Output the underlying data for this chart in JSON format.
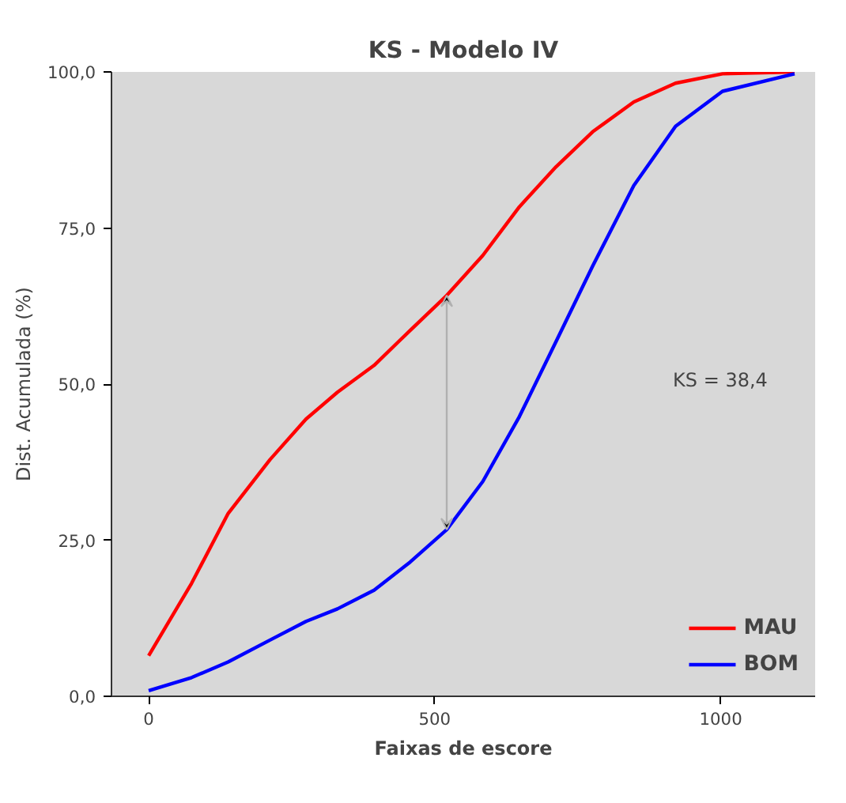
{
  "chart_data": {
    "type": "line",
    "title": "KS - Modelo IV",
    "xlabel": "Faixas de escore",
    "ylabel": "Dist. Acumulada (%)",
    "x": [
      0,
      75,
      139,
      212,
      275,
      330,
      394,
      457,
      521,
      584,
      648,
      712,
      776,
      848,
      921,
      1003,
      1129
    ],
    "series": [
      {
        "name": "MAU",
        "color": "#ff0000",
        "values": [
          6.5,
          18.1,
          29.3,
          37.9,
          44.4,
          48.7,
          53.0,
          58.6,
          64.2,
          70.6,
          78.4,
          84.8,
          90.4,
          95.2,
          98.2,
          99.7,
          100
        ]
      },
      {
        "name": "BOM",
        "color": "#0000ff",
        "values": [
          0.9,
          3.0,
          5.5,
          9.0,
          12.0,
          14.0,
          17.0,
          21.5,
          26.7,
          34.4,
          44.8,
          56.8,
          68.9,
          81.8,
          91.3,
          96.9,
          99.7
        ]
      }
    ],
    "xlim": [
      -65,
      1165
    ],
    "xticks": [
      0,
      500,
      1000
    ],
    "ylim": [
      0,
      100
    ],
    "yticks": [
      {
        "value": 0,
        "label": "0,0"
      },
      {
        "value": 25,
        "label": "25,0"
      },
      {
        "value": 50,
        "label": "50,0"
      },
      {
        "value": 75,
        "label": "75,0"
      },
      {
        "value": 100,
        "label": "100,0"
      }
    ],
    "annotations": [
      "KS = 38,4"
    ],
    "legend": "bottom right",
    "grid": false,
    "marker": "none",
    "line_style": "solid"
  }
}
